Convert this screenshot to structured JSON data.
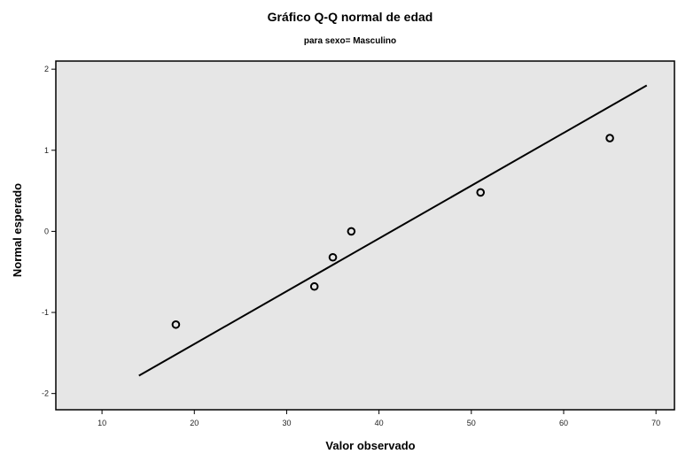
{
  "chart_data": {
    "type": "scatter",
    "title": "Gráfico Q-Q normal de edad",
    "subtitle": "para sexo= Masculino",
    "xlabel": "Valor observado",
    "ylabel": "Normal esperado",
    "xlim": [
      5,
      72
    ],
    "ylim": [
      -2.2,
      2.1
    ],
    "x_ticks": [
      "10",
      "20",
      "30",
      "40",
      "50",
      "60",
      "70"
    ],
    "y_ticks": [
      "2",
      "1",
      "0",
      "-1",
      "-2"
    ],
    "grid": false,
    "legend": "none",
    "points": [
      {
        "x": 18,
        "y": -1.15
      },
      {
        "x": 33,
        "y": -0.68
      },
      {
        "x": 35,
        "y": -0.32
      },
      {
        "x": 37,
        "y": 0.0
      },
      {
        "x": 51,
        "y": 0.48
      },
      {
        "x": 65,
        "y": 1.15
      }
    ],
    "reference_line": {
      "x": [
        14,
        69
      ],
      "y": [
        -1.78,
        1.8
      ]
    },
    "colors": {
      "plot_background": "#e6e6e6",
      "frame": "#000000",
      "marker": "#000000",
      "line": "#000000"
    }
  }
}
